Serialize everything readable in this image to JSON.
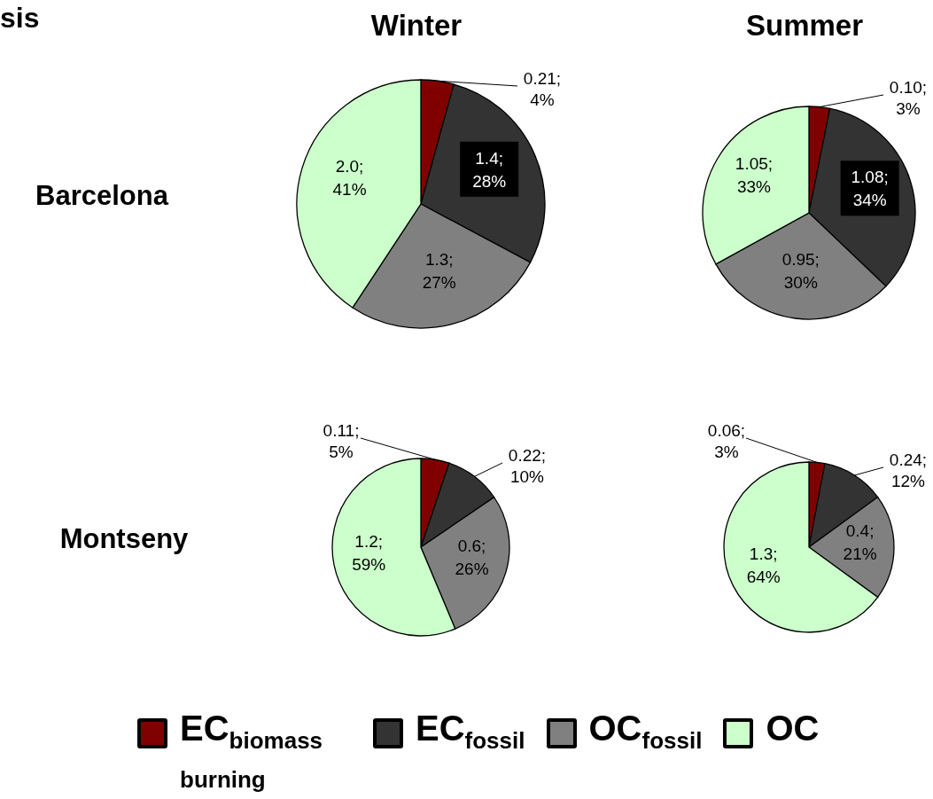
{
  "chart_data": [
    {
      "type": "pie",
      "title": "Winter",
      "ylabel": "Barcelona",
      "annotations": [
        "sis"
      ],
      "legend": "bottom",
      "categories": [
        "EC$_{biomass burning}$",
        "EC$_{fossil}$",
        "OC$_{fossil}$",
        "OC"
      ],
      "values": [
        0.21,
        1.4,
        1.3,
        2.0
      ],
      "colors": [
        "#800000",
        "#333333",
        "#808080",
        "#ccffcc"
      ],
      "value_labels": [
        "0.21; 4%",
        "1.4; 28%",
        "1.3; 27%",
        "2.0; 41%"
      ]
    },
    {
      "type": "pie",
      "title": "Summer",
      "values": [
        0.1,
        1.08,
        0.95,
        1.05
      ],
      "colors": [
        "#800000",
        "#333333",
        "#808080",
        "#ccffcc"
      ],
      "value_labels": [
        "0.10; 3%",
        "1.08; 34%",
        "0.95; 30%",
        "1.05; 33%"
      ]
    },
    {
      "type": "pie",
      "ylabel": "Montseny",
      "values": [
        0.11,
        0.22,
        0.6,
        1.2
      ],
      "colors": [
        "#800000",
        "#333333",
        "#808080",
        "#ccffcc"
      ],
      "value_labels": [
        "0.11; 5%",
        "0.22; 10%",
        "0.6; 26%",
        "1.2; 59%"
      ]
    },
    {
      "type": "pie",
      "values": [
        0.06,
        0.24,
        0.4,
        1.3
      ],
      "colors": [
        "#800000",
        "#333333",
        "#808080",
        "#ccffcc"
      ],
      "value_labels": [
        "0.06; 3%",
        "0.24; 12%",
        "0.4; 21%",
        "1.3; 64%"
      ]
    }
  ]
}
